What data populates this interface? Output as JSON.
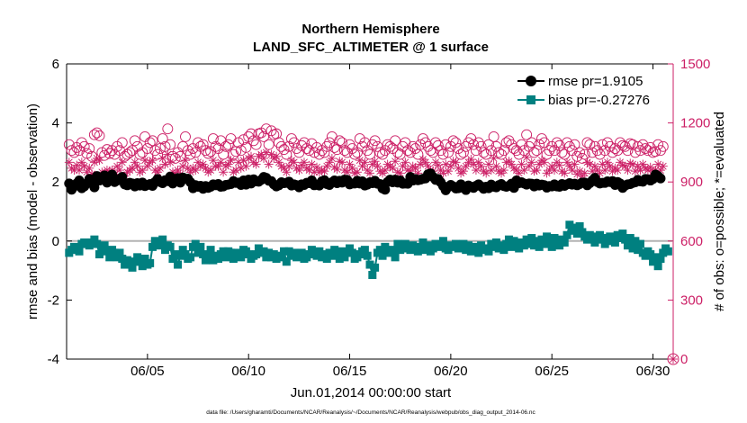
{
  "chart_data": {
    "type": "scatter",
    "title": "Northern Hemisphere",
    "subtitle": "LAND_SFC_ALTIMETER @ 1 surface",
    "xlabel": "Jun.01,2014 00:00:00 start",
    "ylabel": "rmse and bias (model - observation)",
    "ylabel_right": "# of obs: o=possible; *=evaluated",
    "footnote": "data file: /Users/gharamti/Documents/NCAR/Reanalysis/~/Documents/NCAR/Reanalysis/webpub/obs_diag_output_2014-06.nc",
    "x_tick_labels": [
      "06/05",
      "06/10",
      "06/15",
      "06/20",
      "06/25",
      "06/30"
    ],
    "x_tick_values": [
      5,
      10,
      15,
      20,
      25,
      30
    ],
    "xlim": [
      1,
      31
    ],
    "ylim": [
      -4,
      6
    ],
    "yticks": [
      -4,
      -2,
      0,
      2,
      4,
      6
    ],
    "ylim_right": [
      0,
      1500
    ],
    "yticks_right": [
      0,
      300,
      600,
      900,
      1200,
      1500
    ],
    "zero_line": 0,
    "legend_position": "top-right",
    "colors": {
      "rmse": "#000000",
      "bias": "#008080",
      "obs": "#cc1f66",
      "zero": "#b3b3b3"
    },
    "series": [
      {
        "name": "rmse pr=1.9105",
        "axis": "left",
        "marker": "circle-filled",
        "key": "rmse",
        "day_start": 1.125,
        "step": 0.125,
        "values": [
          1.95,
          1.74,
          1.85,
          1.95,
          2.05,
          1.79,
          1.85,
          1.95,
          2.1,
          2.02,
          1.82,
          2.2,
          2.05,
          2.15,
          2.22,
          1.98,
          2.1,
          2.25,
          2.0,
          2.05,
          2.1,
          2.17,
          1.92,
          1.89,
          1.97,
          1.95,
          1.85,
          1.96,
          1.88,
          1.98,
          1.86,
          1.9,
          1.93,
          1.87,
          2.0,
          2.1,
          2.0,
          1.96,
          2.06,
          2.03,
          2.18,
          1.95,
          2.05,
          2.13,
          1.98,
          2.15,
          2.11,
          2.11,
          1.99,
          1.79,
          1.89,
          1.84,
          1.87,
          1.77,
          1.86,
          1.8,
          1.84,
          1.92,
          1.89,
          1.93,
          1.84,
          1.85,
          1.9,
          1.91,
          1.93,
          2.03,
          1.97,
          1.98,
          1.9,
          2.05,
          1.91,
          2.08,
          1.95,
          2.09,
          2.02,
          2.01,
          2.07,
          2.17,
          2.14,
          2.04,
          2.03,
          1.92,
          1.85,
          1.89,
          1.99,
          1.96,
          1.97,
          2.01,
          1.88,
          1.92,
          1.89,
          1.82,
          1.92,
          1.9,
          1.97,
          1.96,
          2.05,
          1.89,
          1.91,
          1.88,
          2.02,
          2.06,
          1.93,
          1.9,
          1.99,
          2.05,
          1.96,
          2.04,
          1.98,
          2.08,
          2.07,
          1.92,
          1.95,
          1.95,
          2.04,
          1.95,
          2.02,
          1.88,
          1.91,
          1.99,
          1.96,
          2.04,
          1.94,
          1.93,
          1.78,
          1.74,
          2.0,
          2.08,
          1.99,
          2.08,
          1.98,
          2.05,
          1.94,
          1.95,
          1.94,
          2.17,
          2.05,
          2.1,
          2.06,
          2.08,
          2.11,
          2.12,
          2.26,
          2.29,
          2.17,
          2.07,
          2.1,
          1.99,
          1.86,
          1.72,
          1.83,
          1.9,
          1.85,
          1.78,
          1.79,
          1.92,
          1.8,
          1.73,
          1.88,
          1.84,
          1.8,
          1.87,
          1.92,
          1.85,
          1.77,
          1.84,
          1.79,
          1.91,
          1.84,
          1.82,
          1.89,
          1.93,
          1.86,
          1.84,
          1.87,
          1.94,
          1.8,
          2.05,
          1.96,
          1.99,
          1.95,
          1.91,
          1.95,
          1.94,
          1.85,
          1.94,
          1.88,
          1.91,
          1.89,
          1.81,
          1.86,
          1.85,
          1.92,
          1.85,
          1.84,
          1.93,
          1.87,
          1.92,
          1.96,
          1.91,
          1.94,
          1.89,
          1.93,
          1.98,
          1.98,
          1.89,
          1.96,
          2.05,
          2.14,
          2.0,
          1.95,
          1.97,
          1.97,
          2.02,
          2.0,
          2.03,
          1.9,
          2.0,
          1.95,
          1.8,
          1.88,
          1.92,
          1.93,
          1.97,
          1.99,
          2.07,
          2.02,
          2.01,
          2.1,
          2.09,
          2.05,
          2.1,
          2.25,
          2.2,
          2.12
        ]
      },
      {
        "name": "bias pr=-0.27276",
        "axis": "left",
        "marker": "square-filled",
        "key": "bias",
        "day_start": 1.125,
        "step": 0.125,
        "values": [
          -0.4,
          -0.3,
          -0.2,
          -0.25,
          -0.35,
          -0.1,
          -0.05,
          -0.1,
          -0.15,
          -0.05,
          0.05,
          -0.1,
          -0.45,
          -0.3,
          -0.15,
          -0.35,
          -0.55,
          -0.3,
          -0.4,
          -0.55,
          -0.4,
          -0.6,
          -0.8,
          -0.65,
          -0.7,
          -0.9,
          -0.7,
          -0.55,
          -0.7,
          -0.85,
          -0.6,
          -0.8,
          -0.75,
          -0.2,
          0.0,
          -0.15,
          -0.1,
          0.05,
          -0.3,
          -0.15,
          -0.2,
          -0.6,
          -0.45,
          -0.8,
          -0.5,
          -0.3,
          -0.45,
          -0.6,
          -0.55,
          -0.2,
          -0.1,
          -0.4,
          -0.2,
          -0.45,
          -0.65,
          -0.55,
          -0.3,
          -0.65,
          -0.5,
          -0.6,
          -0.45,
          -0.35,
          -0.55,
          -0.35,
          -0.4,
          -0.6,
          -0.4,
          -0.5,
          -0.55,
          -0.3,
          -0.35,
          -0.45,
          -0.6,
          -0.5,
          -0.45,
          -0.25,
          -0.4,
          -0.35,
          -0.55,
          -0.4,
          -0.55,
          -0.45,
          -0.6,
          -0.55,
          -0.5,
          -0.35,
          -0.7,
          -0.35,
          -0.5,
          -0.4,
          -0.55,
          -0.45,
          -0.4,
          -0.6,
          -0.55,
          -0.45,
          -0.3,
          -0.4,
          -0.5,
          -0.35,
          -0.55,
          -0.45,
          -0.6,
          -0.4,
          -0.5,
          -0.3,
          -0.45,
          -0.6,
          -0.35,
          -0.55,
          -0.4,
          -0.25,
          -0.4,
          -0.6,
          -0.55,
          -0.45,
          -0.35,
          -0.3,
          -0.5,
          -0.8,
          -1.15,
          -0.9,
          -0.4,
          -0.3,
          -0.5,
          -0.2,
          -0.35,
          -0.4,
          -0.3,
          -0.55,
          -0.1,
          -0.3,
          -0.2,
          -0.1,
          -0.25,
          -0.3,
          -0.15,
          -0.2,
          -0.35,
          -0.25,
          -0.05,
          -0.3,
          -0.15,
          -0.35,
          -0.25,
          -0.1,
          -0.2,
          -0.15,
          0.0,
          -0.25,
          -0.3,
          -0.15,
          -0.2,
          -0.1,
          -0.25,
          -0.15,
          -0.1,
          -0.3,
          -0.15,
          -0.35,
          -0.25,
          -0.2,
          -0.4,
          -0.15,
          -0.3,
          -0.25,
          -0.35,
          -0.1,
          -0.2,
          -0.05,
          -0.25,
          -0.15,
          -0.3,
          -0.1,
          0.05,
          -0.2,
          0.0,
          -0.1,
          -0.25,
          -0.05,
          -0.15,
          0.05,
          -0.1,
          0.1,
          -0.15,
          0.0,
          -0.2,
          0.05,
          -0.1,
          0.15,
          -0.05,
          -0.2,
          0.1,
          0.0,
          -0.15,
          0.05,
          -0.05,
          0.2,
          0.55,
          0.35,
          0.45,
          0.25,
          0.5,
          0.3,
          0.15,
          0.05,
          0.2,
          0.1,
          -0.05,
          0.15,
          0.2,
          0.05,
          -0.1,
          0.1,
          0.15,
          0.0,
          -0.05,
          0.2,
          0.1,
          0.25,
          0.05,
          -0.15,
          0.1,
          -0.25,
          0.0,
          -0.3,
          -0.1,
          -0.4,
          -0.5,
          -0.35,
          -0.45,
          -0.7,
          -0.55,
          -0.85,
          -0.6,
          -0.4,
          -0.25,
          -0.35
        ]
      },
      {
        "name": "possible obs",
        "axis": "right",
        "marker": "circle-open",
        "key": "obs",
        "day_start": 1.125,
        "step": 0.125,
        "values": [
          1090,
          1060,
          1050,
          1075,
          1060,
          1100,
          1080,
          1045,
          1070,
          1030,
          1140,
          1150,
          1135,
          1050,
          1035,
          1065,
          1045,
          1060,
          1040,
          1080,
          1060,
          1100,
          1030,
          1040,
          1050,
          1060,
          1110,
          1080,
          1040,
          1050,
          1130,
          1070,
          1100,
          1110,
          1060,
          1040,
          1070,
          1120,
          1080,
          1170,
          1090,
          1030,
          1020,
          1050,
          1030,
          1080,
          1130,
          1060,
          1040,
          1070,
          1050,
          1100,
          1080,
          1090,
          1060,
          1045,
          1055,
          1120,
          1080,
          1070,
          1110,
          1040,
          1080,
          1090,
          1120,
          1040,
          1055,
          1100,
          1060,
          1115,
          1075,
          1130,
          1145,
          1110,
          1090,
          1145,
          1150,
          1130,
          1170,
          1090,
          1160,
          1140,
          1145,
          1100,
          1080,
          1065,
          1040,
          1080,
          1120,
          1100,
          1070,
          1050,
          1085,
          1100,
          1070,
          1060,
          1095,
          1050,
          1075,
          1040,
          1060,
          1050,
          1080,
          1100,
          1130,
          1075,
          1065,
          1110,
          1100,
          1060,
          1050,
          1090,
          1070,
          1040,
          1050,
          1120,
          1080,
          1100,
          1060,
          1040,
          1090,
          1110,
          1080,
          1050,
          1040,
          1060,
          1090,
          1080,
          1070,
          1110,
          1050,
          1040,
          1080,
          1100,
          1060,
          1050,
          1080,
          1070,
          1040,
          1090,
          1120,
          1100,
          1080,
          1060,
          1050,
          1100,
          1085,
          1060,
          1040,
          1090,
          1050,
          1080,
          1110,
          1100,
          1070,
          1040,
          1050,
          1080,
          1100,
          1120,
          1090,
          1060,
          1100,
          1080,
          1050,
          1040,
          1090,
          1060,
          1130,
          1080,
          1050,
          1040,
          1060,
          1100,
          1110,
          1090,
          1070,
          1060,
          1040,
          1090,
          1060,
          1140,
          1080,
          1100,
          1050,
          1060,
          1090,
          1120,
          1100,
          1040,
          1060,
          1080,
          1060,
          1100,
          1085,
          1050,
          1040,
          1100,
          1080,
          1060,
          1090,
          1030,
          1050,
          1020,
          1040,
          1100,
          1090,
          1050,
          1080,
          1060,
          1040,
          1090,
          1060,
          1100,
          1080,
          1050,
          1070,
          1060,
          1100,
          1085,
          1080,
          1060,
          1095,
          1090,
          1050,
          1080,
          1060,
          1090,
          1070,
          1060,
          1075,
          1050,
          1055,
          1090,
          1060,
          1080
        ]
      },
      {
        "name": "evaluated obs",
        "axis": "right",
        "marker": "asterisk",
        "key": "obs",
        "day_start": 1.125,
        "step": 0.125,
        "values": [
          1000,
          970,
          960,
          985,
          960,
          1000,
          980,
          950,
          970,
          940,
          1000,
          1020,
          1010,
          950,
          940,
          960,
          950,
          960,
          940,
          980,
          960,
          1000,
          930,
          950,
          960,
          970,
          1000,
          980,
          950,
          960,
          1010,
          980,
          1000,
          1010,
          960,
          950,
          970,
          1020,
          990,
          1040,
          1000,
          950,
          940,
          960,
          940,
          980,
          1010,
          970,
          950,
          970,
          960,
          1000,
          980,
          990,
          970,
          950,
          960,
          1010,
          980,
          980,
          1000,
          950,
          980,
          990,
          1010,
          950,
          960,
          1000,
          970,
          1010,
          980,
          1020,
          1030,
          1000,
          990,
          1030,
          1040,
          1020,
          1050,
          990,
          1040,
          1020,
          1030,
          1000,
          980,
          970,
          950,
          980,
          1010,
          1000,
          970,
          960,
          985,
          1000,
          970,
          960,
          990,
          950,
          975,
          950,
          960,
          955,
          980,
          1000,
          1020,
          975,
          965,
          1005,
          1000,
          960,
          950,
          990,
          970,
          945,
          950,
          1010,
          980,
          1000,
          960,
          945,
          990,
          1005,
          980,
          955,
          945,
          960,
          990,
          980,
          970,
          1005,
          950,
          945,
          980,
          1000,
          960,
          955,
          980,
          970,
          945,
          990,
          1015,
          1000,
          980,
          960,
          955,
          1000,
          985,
          960,
          945,
          990,
          955,
          980,
          1005,
          1000,
          970,
          945,
          955,
          980,
          1000,
          1015,
          990,
          960,
          1000,
          980,
          955,
          945,
          990,
          960,
          1020,
          980,
          955,
          945,
          960,
          1000,
          1005,
          990,
          970,
          960,
          945,
          990,
          960,
          1025,
          980,
          1000,
          955,
          960,
          990,
          1010,
          1000,
          945,
          960,
          980,
          960,
          1000,
          985,
          955,
          945,
          1000,
          980,
          960,
          990,
          940,
          955,
          930,
          945,
          1000,
          990,
          955,
          980,
          960,
          945,
          990,
          960,
          1000,
          980,
          955,
          970,
          960,
          1000,
          985,
          980,
          960,
          995,
          990,
          955,
          980,
          960,
          990,
          970,
          960,
          975,
          955,
          960,
          990,
          960,
          980
        ]
      }
    ],
    "legend": [
      {
        "label": "rmse pr=1.9105",
        "key": "rmse",
        "marker": "circle-filled"
      },
      {
        "label": "bias pr=-0.27276",
        "key": "bias",
        "marker": "square-filled"
      }
    ]
  }
}
